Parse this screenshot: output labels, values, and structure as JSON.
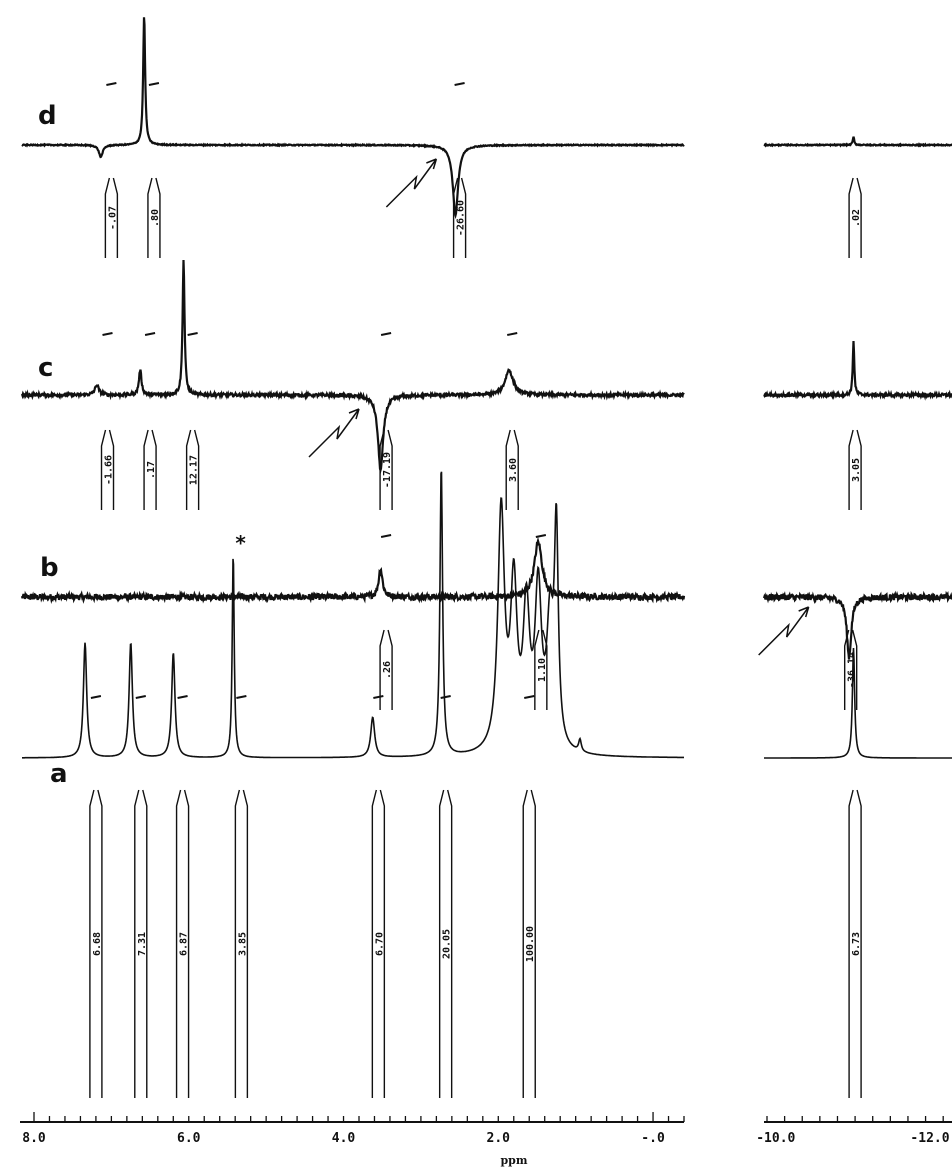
{
  "chart_data": {
    "type": "line",
    "xlabel": "ppm",
    "left_axis": {
      "xlim": [
        8.0,
        -0.4
      ],
      "ticks": [
        {
          "v": 8.0,
          "label": "8.0"
        },
        {
          "v": 6.0,
          "label": "6.0"
        },
        {
          "v": 4.0,
          "label": "4.0"
        },
        {
          "v": 2.0,
          "label": "2.0"
        },
        {
          "v": 0.0,
          "label": "-.0"
        }
      ]
    },
    "right_axis": {
      "xlim": [
        -9.9,
        -12.0
      ],
      "ticks": [
        {
          "v": -10.0,
          "label": "-10.0"
        },
        {
          "v": -12.0,
          "label": "-12.0"
        }
      ]
    },
    "grid": false,
    "legend": "none",
    "spectra": [
      {
        "name": "a",
        "noise": 0,
        "peaks": [
          {
            "ppm": 7.2,
            "height": 115,
            "width": 0.025
          },
          {
            "ppm": 6.62,
            "height": 115,
            "width": 0.025
          },
          {
            "ppm": 6.08,
            "height": 105,
            "width": 0.025
          },
          {
            "ppm": 5.32,
            "height": 205,
            "width": 0.015
          },
          {
            "ppm": 3.55,
            "height": 40,
            "width": 0.03
          },
          {
            "ppm": 2.68,
            "height": 290,
            "width": 0.02
          },
          {
            "ppm": 1.92,
            "height": 240,
            "width": 0.05
          },
          {
            "ppm": 1.76,
            "height": 160,
            "width": 0.05
          },
          {
            "ppm": 1.6,
            "height": 135,
            "width": 0.05
          },
          {
            "ppm": 1.45,
            "height": 155,
            "width": 0.05
          },
          {
            "ppm": 1.3,
            "height": 120,
            "width": 0.05
          },
          {
            "ppm": 1.22,
            "height": 210,
            "width": 0.03
          },
          {
            "ppm": 0.92,
            "height": 12,
            "width": 0.02
          }
        ],
        "right_peaks": [
          {
            "ppm": -10.9,
            "height": 110,
            "width": 0.015
          }
        ],
        "integrals": [
          {
            "ppm": 7.2,
            "label": "6.68"
          },
          {
            "ppm": 6.62,
            "label": "7.31"
          },
          {
            "ppm": 6.08,
            "label": "6.87"
          },
          {
            "ppm": 5.32,
            "label": "3.85"
          },
          {
            "ppm": 3.55,
            "label": "6.70"
          },
          {
            "ppm": 2.68,
            "label": "20.05"
          },
          {
            "ppm": 1.6,
            "label": "100.00"
          }
        ],
        "right_integrals": [
          {
            "ppm": -10.9,
            "label": "6.73"
          }
        ],
        "marker": "*"
      },
      {
        "name": "b",
        "noise": 6,
        "peaks": [
          {
            "ppm": 3.45,
            "height": 28,
            "width": 0.03
          },
          {
            "ppm": 1.45,
            "height": 55,
            "width": 0.06
          }
        ],
        "right_peaks": [
          {
            "ppm": -10.85,
            "height": -60,
            "width": 0.03
          }
        ],
        "integrals": [
          {
            "ppm": 3.45,
            "label": ".26"
          },
          {
            "ppm": 1.45,
            "label": "1.10"
          }
        ],
        "right_integrals": [
          {
            "ppm": -10.85,
            "label": "-36.14"
          }
        ],
        "arrow_right_ppm": -10.6
      },
      {
        "name": "c",
        "noise": 3,
        "peaks": [
          {
            "ppm": 7.05,
            "height": 10,
            "width": 0.03
          },
          {
            "ppm": 6.5,
            "height": 25,
            "width": 0.02
          },
          {
            "ppm": 5.95,
            "height": 135,
            "width": 0.015
          },
          {
            "ppm": 3.45,
            "height": -75,
            "width": 0.04
          },
          {
            "ppm": 1.82,
            "height": 25,
            "width": 0.06
          }
        ],
        "right_peaks": [
          {
            "ppm": -10.9,
            "height": 55,
            "width": 0.01
          }
        ],
        "integrals": [
          {
            "ppm": 7.05,
            "label": "-1.66"
          },
          {
            "ppm": 6.5,
            "label": ".17"
          },
          {
            "ppm": 5.95,
            "label": "12.17"
          },
          {
            "ppm": 3.45,
            "label": "-17.19"
          },
          {
            "ppm": 1.82,
            "label": "3.60"
          }
        ],
        "right_integrals": [
          {
            "ppm": -10.9,
            "label": "3.05"
          }
        ],
        "arrow_left_ppm": 3.8
      },
      {
        "name": "d",
        "noise": 1,
        "peaks": [
          {
            "ppm": 7.0,
            "height": -12,
            "width": 0.03
          },
          {
            "ppm": 6.45,
            "height": 130,
            "width": 0.015
          },
          {
            "ppm": 2.5,
            "height": -70,
            "width": 0.04
          }
        ],
        "right_peaks": [
          {
            "ppm": -10.9,
            "height": 8,
            "width": 0.01
          }
        ],
        "integrals": [
          {
            "ppm": 7.0,
            "label": "-.07"
          },
          {
            "ppm": 6.45,
            "label": ".80"
          },
          {
            "ppm": 2.5,
            "label": "-26.60"
          }
        ],
        "right_integrals": [
          {
            "ppm": -10.9,
            "label": ".02"
          }
        ],
        "arrow_left_ppm": 2.8
      }
    ]
  }
}
